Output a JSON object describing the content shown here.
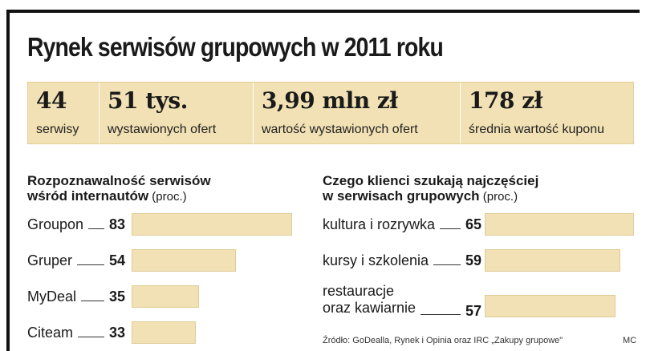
{
  "title": "Rynek serwisów grupowych w 2011 roku",
  "stats": [
    {
      "value": "44",
      "label": "serwisy"
    },
    {
      "value": "51 tys.",
      "label": "wystawionych ofert"
    },
    {
      "value": "3,99 mln zł",
      "label": "wartość wystawionych ofert"
    },
    {
      "value": "178 zł",
      "label": "średnia wartość kuponu"
    }
  ],
  "chart_data": [
    {
      "type": "bar",
      "orientation": "horizontal",
      "title": "Rozpoznawalność serwisów wśród internautów",
      "title_lines": [
        "Rozpoznawalność serwisów",
        "wśród internautów"
      ],
      "unit": "(proc.)",
      "categories": [
        "Groupon",
        "Gruper",
        "MyDeal",
        "Citeam"
      ],
      "values": [
        83,
        54,
        35,
        33
      ],
      "color": "#f1e1b4"
    },
    {
      "type": "bar",
      "orientation": "horizontal",
      "title": "Czego klienci szukają najczęściej w serwisach grupowych",
      "title_lines": [
        "Czego klienci szukają najczęściej",
        "w serwisach grupowych"
      ],
      "unit": "(proc.)",
      "categories": [
        "kultura i rozrywka",
        "kursy i szkolenia",
        "restauracje oraz kawiarnie"
      ],
      "category_lines": [
        [
          "kultura i rozrywka"
        ],
        [
          "kursy i szkolenia"
        ],
        [
          "restauracje",
          "oraz kawiarnie"
        ]
      ],
      "values": [
        65,
        59,
        57
      ],
      "color": "#f1e1b4"
    }
  ],
  "source": "Źródło: GoDealla, Rynek i Opinia oraz IRC „Zakupy grupowe\"",
  "credit": "MC"
}
